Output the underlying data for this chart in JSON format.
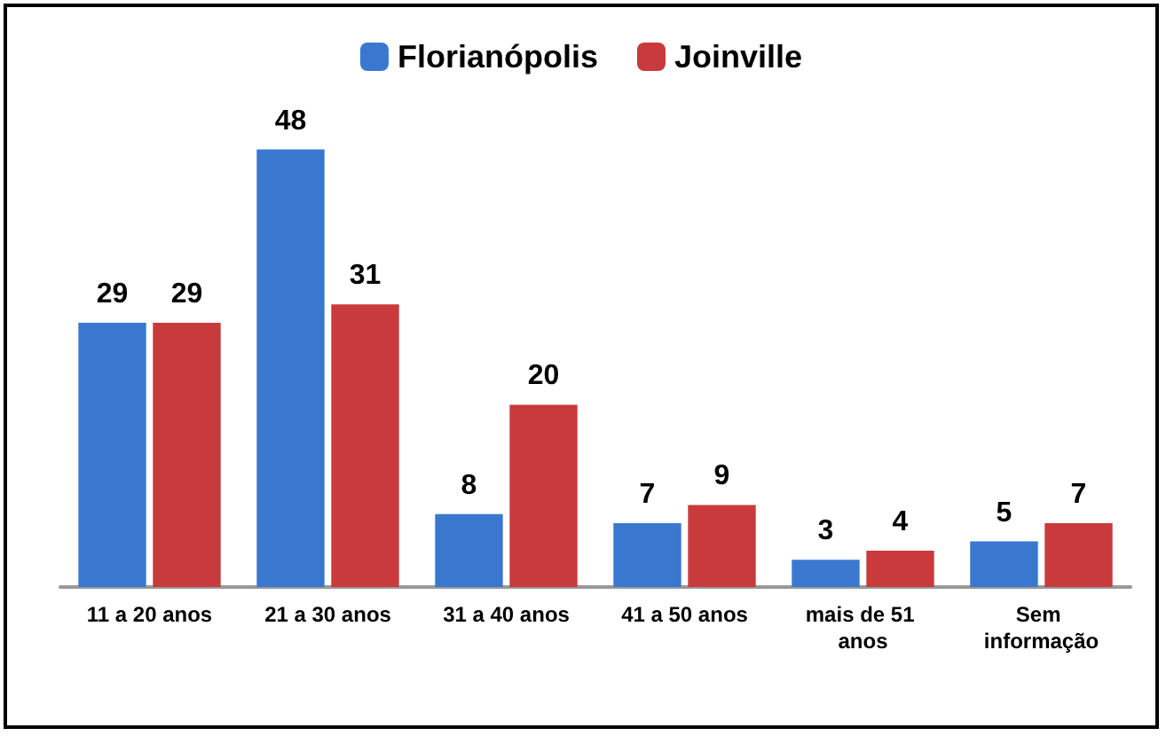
{
  "chart_data": {
    "type": "bar",
    "categories": [
      "11 a 20 anos",
      "21 a 30 anos",
      "31 a 40 anos",
      "41 a 50 anos",
      "mais de 51 anos",
      "Sem informação"
    ],
    "series": [
      {
        "name": "Florianópolis",
        "color": "#3a78d0",
        "values": [
          29,
          48,
          8,
          7,
          3,
          5
        ]
      },
      {
        "name": "Joinville",
        "color": "#c83a3c",
        "values": [
          29,
          31,
          20,
          9,
          4,
          7
        ]
      }
    ],
    "data_labels": true,
    "legend": "top",
    "grid": false,
    "tick_labels": "x"
  }
}
